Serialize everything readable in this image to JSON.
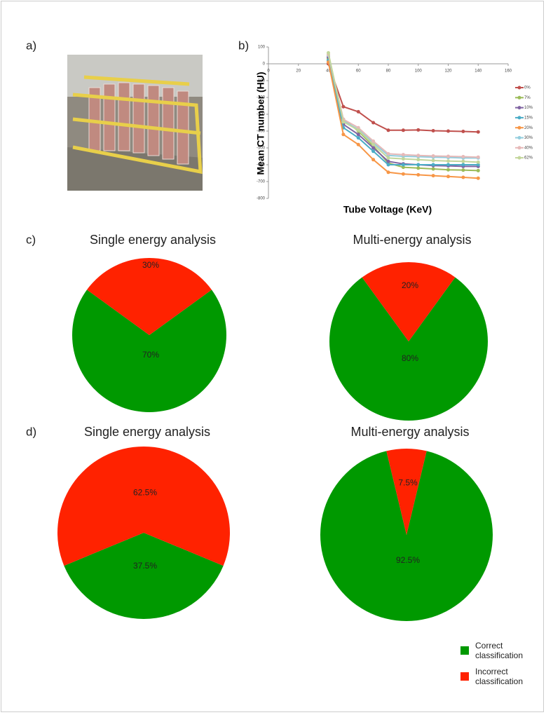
{
  "panels": [
    "a)",
    "b)",
    "c)",
    "d)"
  ],
  "legend": {
    "labels": [
      "Correct classification",
      "Incorrect classification"
    ],
    "colors": [
      "#009900",
      "#ff2200"
    ]
  },
  "chart_data": [
    {
      "type": "line",
      "y_label": "Mean CT number (HU)",
      "x_label": "Tube Voltage (KeV)",
      "xlim": [
        0,
        160
      ],
      "xticks": [
        0,
        20,
        40,
        60,
        80,
        100,
        120,
        140,
        160
      ],
      "ylim": [
        -800,
        100
      ],
      "yticks": [
        100,
        0,
        -100,
        -200,
        -300,
        -400,
        -500,
        -600,
        -700,
        -800
      ],
      "x": [
        40,
        50,
        60,
        70,
        80,
        90,
        100,
        110,
        120,
        130,
        140
      ],
      "series": [
        {
          "name": "0%",
          "color": "#c0504d",
          "values": [
            0,
            -255,
            -285,
            -350,
            -395,
            -395,
            -393,
            -398,
            -400,
            -402,
            -405
          ]
        },
        {
          "name": "7%",
          "color": "#9bbb59",
          "values": [
            30,
            -330,
            -400,
            -490,
            -590,
            -615,
            -620,
            -625,
            -630,
            -632,
            -635
          ]
        },
        {
          "name": "10%",
          "color": "#8064a2",
          "values": [
            40,
            -360,
            -420,
            -500,
            -580,
            -595,
            -600,
            -605,
            -607,
            -610,
            -610
          ]
        },
        {
          "name": "15%",
          "color": "#4bacc6",
          "values": [
            20,
            -380,
            -440,
            -520,
            -600,
            -600,
            -600,
            -600,
            -600,
            -600,
            -600
          ]
        },
        {
          "name": "20%",
          "color": "#f79646",
          "values": [
            10,
            -420,
            -480,
            -570,
            -645,
            -655,
            -660,
            -665,
            -670,
            -675,
            -680
          ]
        },
        {
          "name": "30%",
          "color": "#93cddd",
          "values": [
            50,
            -340,
            -390,
            -470,
            -545,
            -550,
            -552,
            -555,
            -557,
            -560,
            -560
          ]
        },
        {
          "name": "40%",
          "color": "#e6b9b8",
          "values": [
            55,
            -330,
            -380,
            -460,
            -535,
            -540,
            -545,
            -548,
            -550,
            -552,
            -555
          ]
        },
        {
          "name": "62%",
          "color": "#c3d69b",
          "values": [
            65,
            -345,
            -395,
            -480,
            -560,
            -565,
            -570,
            -575,
            -578,
            -580,
            -585
          ]
        }
      ]
    },
    {
      "type": "pie",
      "title": "Single energy analysis",
      "values": [
        70,
        30
      ],
      "value_labels": [
        "70%",
        "30%"
      ],
      "colors": [
        "#009900",
        "#ff2200"
      ]
    },
    {
      "type": "pie",
      "title": "Multi-energy analysis",
      "values": [
        80,
        20
      ],
      "value_labels": [
        "80%",
        "20%"
      ],
      "colors": [
        "#009900",
        "#ff2200"
      ]
    },
    {
      "type": "pie",
      "title": "Single energy analysis",
      "values": [
        37.5,
        62.5
      ],
      "value_labels": [
        "37.5%",
        "62.5%"
      ],
      "colors": [
        "#009900",
        "#ff2200"
      ]
    },
    {
      "type": "pie",
      "title": "Multi-energy analysis",
      "values": [
        92.5,
        7.5
      ],
      "value_labels": [
        "92.5%",
        "7.5%"
      ],
      "colors": [
        "#009900",
        "#ff2200"
      ]
    }
  ]
}
